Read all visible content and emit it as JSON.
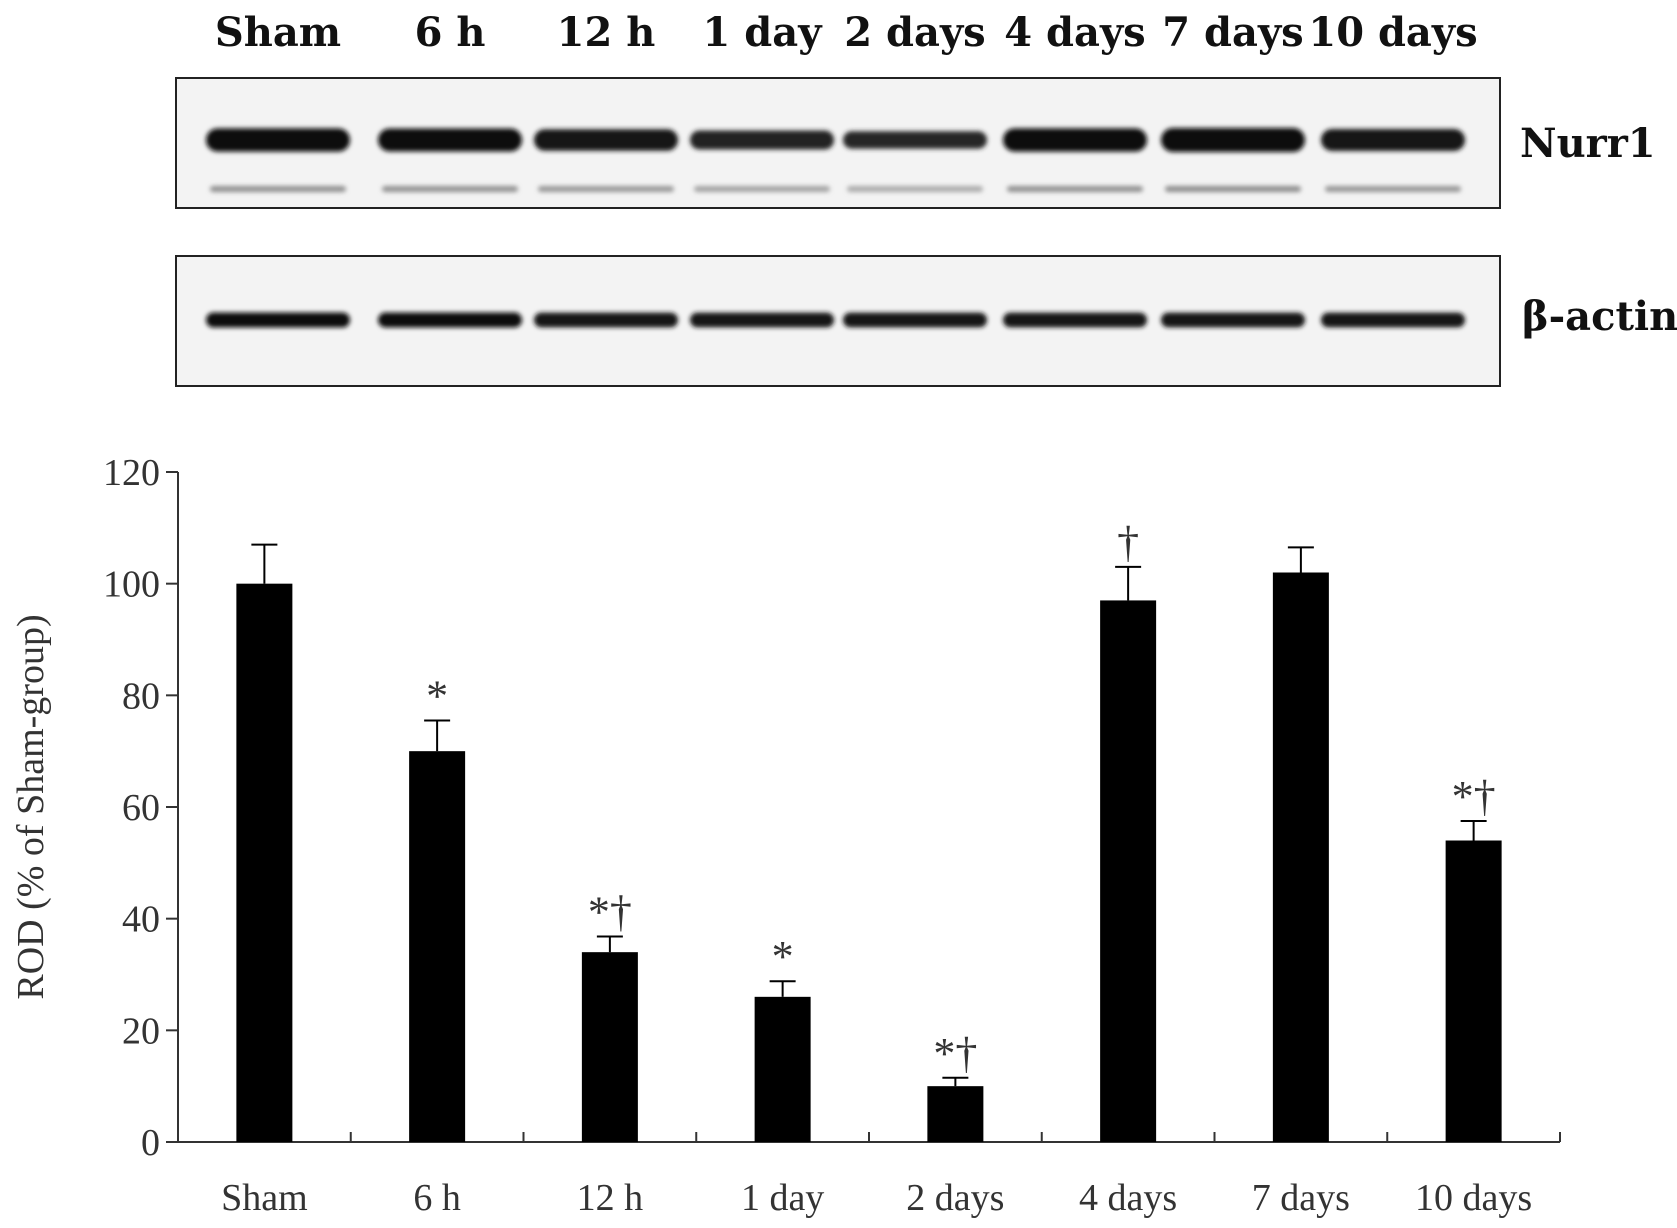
{
  "blot": {
    "lane_labels": [
      "Sham",
      "6 h",
      "12 h",
      "1 day",
      "2 days",
      "4 days",
      "7 days",
      "10 days"
    ],
    "rows": [
      {
        "name": "Nurr1",
        "band_intensity": [
          0.95,
          0.92,
          0.82,
          0.62,
          0.5,
          0.95,
          1.0,
          0.85
        ]
      },
      {
        "name": "β-actin",
        "band_intensity": [
          0.9,
          0.88,
          0.85,
          0.85,
          0.85,
          0.85,
          0.85,
          0.85
        ]
      }
    ]
  },
  "chart_data": {
    "type": "bar",
    "categories": [
      "Sham",
      "6 h",
      "12 h",
      "1 day",
      "2 days",
      "4 days",
      "7 days",
      "10 days"
    ],
    "values": [
      100,
      70,
      34,
      26,
      10,
      97,
      102,
      54
    ],
    "errors": [
      7,
      5.5,
      2.8,
      2.8,
      1.5,
      6,
      4.5,
      3.5
    ],
    "annotations": [
      "",
      "*",
      "*†",
      "*",
      "*†",
      "†",
      "",
      "*†"
    ],
    "ylabel": "ROD (% of Sham-group)",
    "xlabel": "",
    "ylim": [
      0,
      120
    ],
    "yticks": [
      0,
      20,
      40,
      60,
      80,
      100,
      120
    ],
    "grid": false,
    "bar_color": "#000000"
  }
}
